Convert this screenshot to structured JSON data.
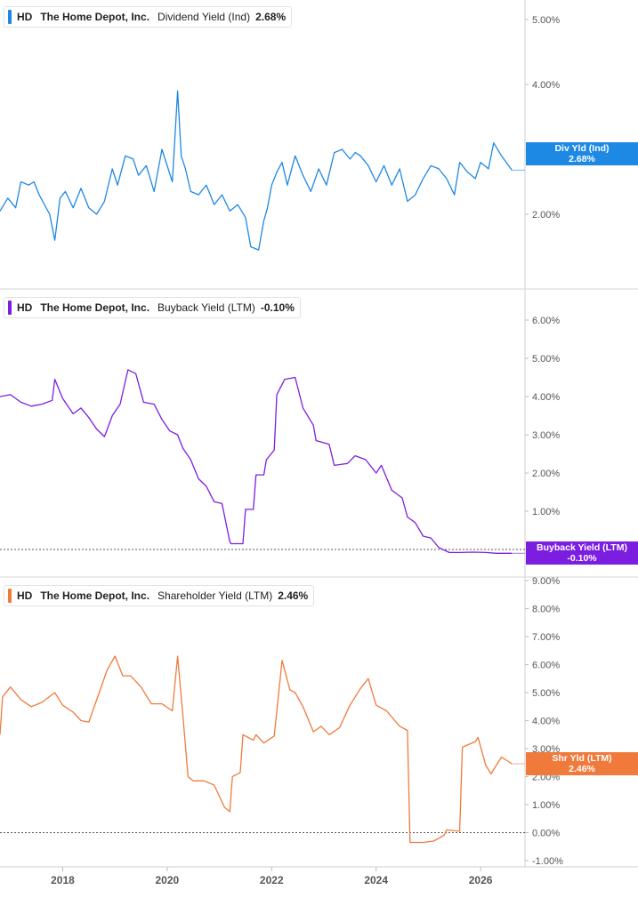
{
  "chart_data": [
    {
      "type": "line",
      "legend": {
        "ticker": "HD",
        "company": "The Home Depot, Inc.",
        "metric": "Dividend Yield (Ind)",
        "value": "2.68%"
      },
      "badge": {
        "line1": "Div Yld (Ind)",
        "line2": "2.68%"
      },
      "color": "#1e88e5",
      "ylim": [
        1.3,
        5.3
      ],
      "yticks": [
        "5.00%",
        "4.00%",
        "3.00%",
        "2.00%"
      ],
      "ytick_values": [
        5,
        4,
        3,
        2
      ],
      "reference_line": null,
      "x": [
        2016.8,
        2016.95,
        2017.1,
        2017.2,
        2017.35,
        2017.45,
        2017.55,
        2017.75,
        2017.85,
        2017.95,
        2018.05,
        2018.2,
        2018.35,
        2018.5,
        2018.65,
        2018.8,
        2018.95,
        2019.05,
        2019.2,
        2019.35,
        2019.45,
        2019.6,
        2019.75,
        2019.9,
        2020.1,
        2020.2,
        2020.27,
        2020.35,
        2020.45,
        2020.6,
        2020.75,
        2020.9,
        2021.05,
        2021.2,
        2021.35,
        2021.5,
        2021.6,
        2021.75,
        2021.85,
        2021.92,
        2022.0,
        2022.1,
        2022.2,
        2022.3,
        2022.45,
        2022.6,
        2022.75,
        2022.9,
        2023.05,
        2023.2,
        2023.35,
        2023.5,
        2023.6,
        2023.7,
        2023.85,
        2024.0,
        2024.15,
        2024.3,
        2024.45,
        2024.6,
        2024.75,
        2024.9,
        2025.05,
        2025.2,
        2025.35,
        2025.5,
        2025.6,
        2025.75,
        2025.9,
        2026.0,
        2026.15,
        2026.25,
        2026.4,
        2026.6
      ],
      "values": [
        2.05,
        2.25,
        2.1,
        2.5,
        2.45,
        2.5,
        2.3,
        2.0,
        1.6,
        2.25,
        2.35,
        2.1,
        2.4,
        2.1,
        2.0,
        2.2,
        2.7,
        2.45,
        2.9,
        2.85,
        2.6,
        2.75,
        2.35,
        3.0,
        2.5,
        3.9,
        2.9,
        2.7,
        2.35,
        2.3,
        2.45,
        2.15,
        2.3,
        2.05,
        2.15,
        1.95,
        1.5,
        1.45,
        1.9,
        2.1,
        2.45,
        2.65,
        2.8,
        2.45,
        2.9,
        2.6,
        2.35,
        2.7,
        2.45,
        2.95,
        3.0,
        2.85,
        2.95,
        2.9,
        2.75,
        2.5,
        2.75,
        2.45,
        2.7,
        2.2,
        2.3,
        2.55,
        2.75,
        2.7,
        2.55,
        2.3,
        2.8,
        2.65,
        2.55,
        2.8,
        2.7,
        3.1,
        2.9,
        2.68
      ]
    },
    {
      "type": "line",
      "legend": {
        "ticker": "HD",
        "company": "The Home Depot, Inc.",
        "metric": "Buyback Yield (LTM)",
        "value": "-0.10%"
      },
      "badge": {
        "line1": "Buyback Yield (LTM)",
        "line2": "-0.10%"
      },
      "color": "#7c1ee0",
      "ylim": [
        -0.3,
        6.4
      ],
      "yticks": [
        "6.00%",
        "5.00%",
        "4.00%",
        "3.00%",
        "2.00%",
        "1.00%"
      ],
      "ytick_values": [
        6,
        5,
        4,
        3,
        2,
        1
      ],
      "reference_line": 0,
      "x": [
        2016.8,
        2017.0,
        2017.2,
        2017.4,
        2017.6,
        2017.8,
        2017.85,
        2018.0,
        2018.2,
        2018.35,
        2018.5,
        2018.65,
        2018.8,
        2018.95,
        2019.1,
        2019.25,
        2019.4,
        2019.55,
        2019.75,
        2019.9,
        2020.05,
        2020.2,
        2020.3,
        2020.45,
        2020.6,
        2020.75,
        2020.9,
        2021.05,
        2021.2,
        2021.22,
        2021.45,
        2021.5,
        2021.65,
        2021.7,
        2021.85,
        2021.9,
        2022.05,
        2022.1,
        2022.25,
        2022.45,
        2022.6,
        2022.8,
        2022.85,
        2023.1,
        2023.2,
        2023.45,
        2023.6,
        2023.8,
        2024.0,
        2024.1,
        2024.3,
        2024.5,
        2024.6,
        2024.75,
        2024.9,
        2025.05,
        2025.2,
        2025.4,
        2025.6,
        2025.85,
        2026.1,
        2026.3,
        2026.6
      ],
      "values": [
        4.0,
        4.05,
        3.85,
        3.75,
        3.8,
        3.9,
        4.45,
        3.95,
        3.55,
        3.7,
        3.45,
        3.15,
        2.95,
        3.5,
        3.8,
        4.7,
        4.6,
        3.85,
        3.8,
        3.4,
        3.1,
        3.0,
        2.65,
        2.35,
        1.85,
        1.65,
        1.25,
        1.2,
        0.2,
        0.15,
        0.15,
        1.05,
        1.05,
        1.95,
        1.95,
        2.35,
        2.6,
        4.05,
        4.45,
        4.5,
        3.7,
        3.25,
        2.85,
        2.75,
        2.2,
        2.25,
        2.45,
        2.35,
        2.0,
        2.2,
        1.55,
        1.35,
        0.85,
        0.7,
        0.35,
        0.3,
        0.05,
        -0.08,
        -0.08,
        -0.07,
        -0.08,
        -0.1,
        -0.1
      ]
    },
    {
      "type": "line",
      "legend": {
        "ticker": "HD",
        "company": "The Home Depot, Inc.",
        "metric": "Shareholder Yield (LTM)",
        "value": "2.46%"
      },
      "badge": {
        "line1": "Shr Yld (LTM)",
        "line2": "2.46%"
      },
      "color": "#f07a3c",
      "ylim": [
        -1.2,
        9.2
      ],
      "yticks": [
        "9.00%",
        "8.00%",
        "7.00%",
        "6.00%",
        "5.00%",
        "4.00%",
        "3.00%",
        "2.00%",
        "1.00%",
        "0.00%",
        "-1.00%"
      ],
      "ytick_values": [
        9,
        8,
        7,
        6,
        5,
        4,
        3,
        2,
        1,
        0,
        -1
      ],
      "reference_line": 0,
      "x": [
        2016.8,
        2016.85,
        2017.0,
        2017.2,
        2017.4,
        2017.6,
        2017.85,
        2018.0,
        2018.2,
        2018.35,
        2018.5,
        2018.7,
        2018.85,
        2019.0,
        2019.15,
        2019.3,
        2019.5,
        2019.7,
        2019.9,
        2020.1,
        2020.2,
        2020.3,
        2020.4,
        2020.5,
        2020.7,
        2020.9,
        2021.1,
        2021.2,
        2021.25,
        2021.4,
        2021.45,
        2021.65,
        2021.7,
        2021.85,
        2022.05,
        2022.2,
        2022.35,
        2022.45,
        2022.6,
        2022.8,
        2022.95,
        2023.1,
        2023.3,
        2023.5,
        2023.7,
        2023.85,
        2024.0,
        2024.2,
        2024.45,
        2024.6,
        2024.65,
        2024.9,
        2025.1,
        2025.3,
        2025.35,
        2025.6,
        2025.65,
        2025.9,
        2025.95,
        2026.1,
        2026.2,
        2026.4,
        2026.6
      ],
      "values": [
        3.5,
        4.85,
        5.2,
        4.75,
        4.5,
        4.65,
        5.0,
        4.55,
        4.3,
        4.0,
        3.95,
        5.0,
        5.8,
        6.3,
        5.6,
        5.6,
        5.2,
        4.6,
        4.6,
        4.35,
        6.3,
        4.2,
        2.0,
        1.85,
        1.85,
        1.7,
        0.9,
        0.75,
        2.0,
        2.15,
        3.5,
        3.3,
        3.5,
        3.2,
        3.45,
        6.15,
        5.1,
        5.0,
        4.5,
        3.6,
        3.8,
        3.5,
        3.75,
        4.55,
        5.15,
        5.5,
        4.55,
        4.35,
        3.8,
        3.65,
        -0.35,
        -0.35,
        -0.3,
        -0.1,
        0.1,
        0.05,
        3.05,
        3.25,
        3.4,
        2.4,
        2.1,
        2.7,
        2.46
      ]
    }
  ],
  "shared_x_axis": {
    "range": [
      2016.8,
      2026.85
    ],
    "tick_labels": [
      "2018",
      "2020",
      "2022",
      "2024",
      "2026"
    ],
    "tick_values": [
      2018,
      2020,
      2022,
      2024,
      2026
    ]
  }
}
